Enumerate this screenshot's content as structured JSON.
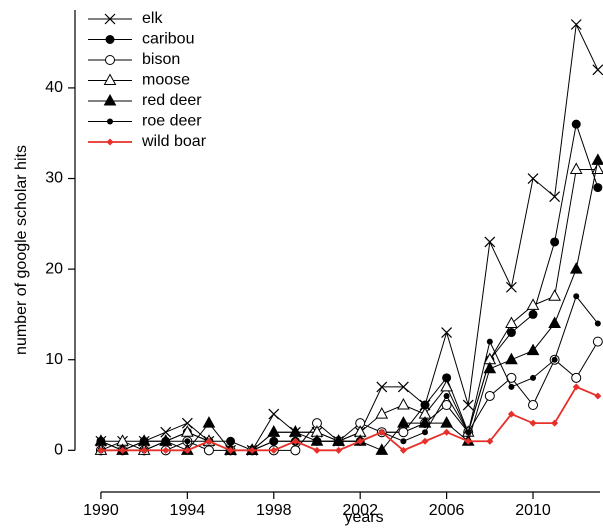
{
  "chart_data": {
    "type": "line",
    "x_label": "years",
    "y_label": "number of google scholar hits",
    "x": [
      1990,
      1991,
      1992,
      1993,
      1994,
      1995,
      1996,
      1997,
      1998,
      1999,
      2000,
      2001,
      2002,
      2003,
      2004,
      2005,
      2006,
      2007,
      2008,
      2009,
      2010,
      2011,
      2012,
      2013
    ],
    "xlim": [
      1988.8,
      2013.1
    ],
    "xticks": [
      1990,
      1994,
      1998,
      2002,
      2006,
      2010
    ],
    "ylim": [
      -4.6,
      48.6
    ],
    "yticks": [
      0,
      10,
      20,
      30,
      40
    ],
    "legend": "top-left",
    "series": [
      {
        "name": "elk",
        "color": "#000000",
        "marker": "cross",
        "values": [
          1,
          1,
          1,
          2,
          3,
          1,
          0,
          0,
          4,
          2,
          2,
          1,
          2,
          7,
          7,
          5,
          13,
          5,
          23,
          18,
          30,
          28,
          47,
          42
        ]
      },
      {
        "name": "caribou",
        "color": "#000000",
        "marker": "filled-circle",
        "values": [
          1,
          0,
          1,
          1,
          2,
          1,
          1,
          0,
          1,
          1,
          1,
          1,
          1,
          2,
          2,
          5,
          8,
          2,
          10,
          13,
          15,
          23,
          36,
          29
        ]
      },
      {
        "name": "bison",
        "color": "#000000",
        "marker": "open-circle",
        "values": [
          0,
          0,
          0,
          0,
          1,
          0,
          0,
          0,
          0,
          0,
          3,
          1,
          3,
          2,
          2,
          3,
          5,
          2,
          6,
          8,
          5,
          10,
          8,
          12
        ]
      },
      {
        "name": "moose",
        "color": "#000000",
        "marker": "open-triangle",
        "values": [
          0,
          1,
          0,
          1,
          2,
          1,
          0,
          0,
          2,
          2,
          2,
          1,
          2,
          4,
          5,
          4,
          7,
          2,
          10,
          14,
          16,
          17,
          31,
          31
        ]
      },
      {
        "name": "red deer",
        "color": "#000000",
        "marker": "filled-triangle",
        "values": [
          1,
          0,
          1,
          1,
          0,
          3,
          0,
          0,
          2,
          2,
          1,
          1,
          1,
          0,
          3,
          3,
          3,
          1,
          9,
          10,
          11,
          14,
          20,
          32
        ]
      },
      {
        "name": "roe deer",
        "color": "#000000",
        "marker": "small-circle",
        "values": [
          0,
          0,
          0,
          1,
          1,
          1,
          0,
          0,
          1,
          1,
          1,
          1,
          1,
          2,
          1,
          2,
          6,
          2,
          12,
          7,
          8,
          10,
          17,
          14
        ]
      },
      {
        "name": "wild boar",
        "color": "#e8302a",
        "marker": "diamond",
        "values": [
          0,
          0,
          0,
          0,
          0,
          1,
          0,
          0,
          0,
          1,
          0,
          0,
          1,
          2,
          0,
          1,
          2,
          1,
          1,
          4,
          3,
          3,
          7,
          6
        ]
      }
    ]
  }
}
